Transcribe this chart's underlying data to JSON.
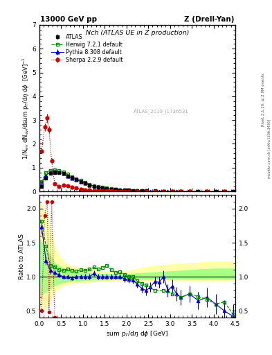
{
  "title_top": "13000 GeV pp",
  "title_right": "Z (Drell-Yan)",
  "panel_title": "Nch (ATLAS UE in Z production)",
  "ylabel_main": "1/N$_{ev}$ dN$_{ev}$/dsum p$_{T}$/d$\\eta$ d$\\phi$  [GeV]$^{-1}$",
  "ylabel_ratio": "Ratio to ATLAS",
  "xlabel": "sum p$_{T}$/d$\\eta$ d$\\phi$ [GeV]",
  "watermark": "ATLAS_2019_I1736531",
  "right_label1": "Rivet 3.1.10, ≥ 2.9M events",
  "right_label2": "mcplots.cern.ch [arXiv:1306.3436]",
  "main_ylim": [
    0,
    7
  ],
  "main_yticks": [
    0,
    1,
    2,
    3,
    4,
    5,
    6,
    7
  ],
  "ratio_ylim": [
    0.4,
    2.2
  ],
  "ratio_yticks": [
    0.5,
    1.0,
    1.5,
    2.0
  ],
  "xlim": [
    0,
    4.5
  ],
  "atlas_x": [
    0.05,
    0.15,
    0.25,
    0.35,
    0.45,
    0.55,
    0.65,
    0.75,
    0.85,
    0.95,
    1.05,
    1.15,
    1.25,
    1.35,
    1.45,
    1.55,
    1.65,
    1.75,
    1.85,
    1.95,
    2.05,
    2.15,
    2.25,
    2.35,
    2.45,
    2.65,
    2.85,
    3.05,
    3.25,
    3.45,
    3.65,
    3.85,
    4.05,
    4.25,
    4.45
  ],
  "atlas_y": [
    0.22,
    0.55,
    0.75,
    0.8,
    0.8,
    0.75,
    0.65,
    0.58,
    0.5,
    0.42,
    0.35,
    0.28,
    0.22,
    0.18,
    0.15,
    0.12,
    0.1,
    0.085,
    0.07,
    0.06,
    0.05,
    0.04,
    0.035,
    0.03,
    0.025,
    0.02,
    0.015,
    0.012,
    0.01,
    0.008,
    0.007,
    0.006,
    0.005,
    0.004,
    0.003
  ],
  "atlas_yerr": [
    0.02,
    0.04,
    0.04,
    0.04,
    0.04,
    0.04,
    0.03,
    0.03,
    0.03,
    0.025,
    0.02,
    0.018,
    0.015,
    0.012,
    0.01,
    0.009,
    0.008,
    0.007,
    0.006,
    0.005,
    0.004,
    0.003,
    0.003,
    0.002,
    0.002,
    0.002,
    0.002,
    0.001,
    0.001,
    0.001,
    0.001,
    0.001,
    0.001,
    0.001,
    0.001
  ],
  "herwig_x": [
    0.05,
    0.15,
    0.25,
    0.35,
    0.45,
    0.55,
    0.65,
    0.75,
    0.85,
    0.95,
    1.05,
    1.15,
    1.25,
    1.35,
    1.45,
    1.55,
    1.65,
    1.75,
    1.85,
    1.95,
    2.05,
    2.15,
    2.25,
    2.35,
    2.45,
    2.65,
    2.85,
    3.05,
    3.25,
    3.45,
    3.65,
    3.85,
    4.05,
    4.25,
    4.45
  ],
  "herwig_y": [
    0.4,
    0.8,
    0.88,
    0.92,
    0.88,
    0.82,
    0.72,
    0.63,
    0.54,
    0.46,
    0.38,
    0.31,
    0.25,
    0.2,
    0.17,
    0.14,
    0.11,
    0.09,
    0.075,
    0.062,
    0.05,
    0.04,
    0.033,
    0.027,
    0.022,
    0.016,
    0.012,
    0.009,
    0.007,
    0.006,
    0.005,
    0.004,
    0.003,
    0.0025,
    0.002
  ],
  "pythia_x": [
    0.05,
    0.15,
    0.25,
    0.35,
    0.45,
    0.55,
    0.65,
    0.75,
    0.85,
    0.95,
    1.05,
    1.15,
    1.25,
    1.35,
    1.45,
    1.55,
    1.65,
    1.75,
    1.85,
    1.95,
    2.05,
    2.15,
    2.25,
    2.35,
    2.45,
    2.55,
    2.65,
    2.75,
    2.85,
    2.95,
    3.05,
    3.15,
    3.25,
    3.45,
    3.65,
    3.85,
    4.05,
    4.25,
    4.45
  ],
  "pythia_y": [
    0.38,
    0.68,
    0.82,
    0.85,
    0.82,
    0.75,
    0.65,
    0.57,
    0.5,
    0.42,
    0.35,
    0.28,
    0.23,
    0.18,
    0.15,
    0.12,
    0.1,
    0.085,
    0.07,
    0.058,
    0.048,
    0.038,
    0.031,
    0.025,
    0.02,
    0.017,
    0.014,
    0.011,
    0.009,
    0.008,
    0.007,
    0.006,
    0.005,
    0.004,
    0.003,
    0.0025,
    0.002,
    0.0016,
    0.0013
  ],
  "pythia_yerr": [
    0.02,
    0.03,
    0.03,
    0.03,
    0.03,
    0.025,
    0.02,
    0.02,
    0.018,
    0.015,
    0.012,
    0.01,
    0.008,
    0.007,
    0.006,
    0.005,
    0.004,
    0.004,
    0.003,
    0.003,
    0.002,
    0.002,
    0.002,
    0.002,
    0.002,
    0.002,
    0.002,
    0.002,
    0.001,
    0.001,
    0.001,
    0.001,
    0.001,
    0.001,
    0.001,
    0.001,
    0.001,
    0.001,
    0.001
  ],
  "sherpa_x": [
    0.05,
    0.12,
    0.18,
    0.22,
    0.28,
    0.35,
    0.45,
    0.55,
    0.65,
    0.75,
    0.85,
    0.95,
    1.05,
    1.15,
    1.25,
    1.35,
    1.45,
    1.55,
    1.65,
    1.75,
    1.85,
    1.95,
    2.05,
    2.25,
    2.45,
    2.65,
    2.85,
    3.05,
    3.25,
    3.45,
    3.85,
    4.25
  ],
  "sherpa_y": [
    1.7,
    2.7,
    3.08,
    2.6,
    1.3,
    0.32,
    0.22,
    0.28,
    0.23,
    0.18,
    0.14,
    0.08,
    0.06,
    0.055,
    0.048,
    0.038,
    0.03,
    0.025,
    0.02,
    0.016,
    0.013,
    0.01,
    0.008,
    0.006,
    0.004,
    0.003,
    0.002,
    0.002,
    0.001,
    0.001,
    0.001,
    0.001
  ],
  "sherpa_yerr": [
    0.1,
    0.15,
    0.18,
    0.15,
    0.1,
    0.04,
    0.02,
    0.02,
    0.015,
    0.012,
    0.01,
    0.008,
    0.006,
    0.005,
    0.004,
    0.003,
    0.003,
    0.002,
    0.002,
    0.002,
    0.001,
    0.001,
    0.001,
    0.001,
    0.001,
    0.001,
    0.001,
    0.001,
    0.001,
    0.001,
    0.001,
    0.001
  ],
  "herwig_ratio_x": [
    0.05,
    0.15,
    0.25,
    0.35,
    0.45,
    0.55,
    0.65,
    0.75,
    0.85,
    0.95,
    1.05,
    1.15,
    1.25,
    1.35,
    1.45,
    1.55,
    1.65,
    1.75,
    1.85,
    1.95,
    2.05,
    2.15,
    2.25,
    2.35,
    2.45,
    2.65,
    2.85,
    3.05,
    3.25,
    3.45,
    3.65,
    3.85,
    4.05,
    4.25,
    4.45
  ],
  "herwig_ratio": [
    1.82,
    1.45,
    1.17,
    1.15,
    1.1,
    1.09,
    1.11,
    1.09,
    1.08,
    1.1,
    1.09,
    1.11,
    1.14,
    1.11,
    1.13,
    1.17,
    1.1,
    1.06,
    1.07,
    1.03,
    1.0,
    1.0,
    0.94,
    0.9,
    0.88,
    0.8,
    0.8,
    0.75,
    0.7,
    0.75,
    0.71,
    0.67,
    0.6,
    0.63,
    0.45
  ],
  "pythia_ratio_x": [
    0.05,
    0.15,
    0.25,
    0.35,
    0.45,
    0.55,
    0.65,
    0.75,
    0.85,
    0.95,
    1.05,
    1.15,
    1.25,
    1.35,
    1.45,
    1.55,
    1.65,
    1.75,
    1.85,
    1.95,
    2.05,
    2.15,
    2.25,
    2.35,
    2.45,
    2.55,
    2.65,
    2.75,
    2.85,
    2.95,
    3.05,
    3.15,
    3.25,
    3.45,
    3.65,
    3.85,
    4.05,
    4.25,
    4.45
  ],
  "pythia_ratio": [
    1.73,
    1.24,
    1.09,
    1.06,
    1.03,
    1.0,
    1.0,
    0.98,
    1.0,
    1.0,
    1.0,
    1.0,
    1.05,
    1.0,
    1.0,
    1.0,
    1.0,
    1.0,
    1.0,
    0.97,
    0.96,
    0.95,
    0.89,
    0.83,
    0.8,
    0.85,
    0.93,
    0.92,
    1.0,
    0.8,
    0.86,
    0.75,
    0.7,
    0.75,
    0.65,
    0.7,
    0.6,
    0.5,
    0.42
  ],
  "pythia_ratio_err": [
    0.1,
    0.06,
    0.05,
    0.04,
    0.04,
    0.03,
    0.03,
    0.03,
    0.03,
    0.03,
    0.04,
    0.04,
    0.04,
    0.04,
    0.04,
    0.04,
    0.04,
    0.04,
    0.04,
    0.05,
    0.05,
    0.05,
    0.05,
    0.06,
    0.07,
    0.07,
    0.07,
    0.08,
    0.09,
    0.09,
    0.1,
    0.1,
    0.11,
    0.12,
    0.13,
    0.14,
    0.15,
    0.16,
    0.18
  ],
  "sherpa_ratio_x": [
    0.05,
    0.12,
    0.18,
    0.22,
    0.28,
    0.35,
    0.45,
    0.55,
    0.65,
    0.75,
    0.85,
    0.95,
    1.05,
    1.15,
    1.25,
    1.35,
    1.45,
    1.55,
    1.65,
    1.75,
    1.85,
    1.95,
    2.05,
    2.25,
    2.45,
    2.65,
    2.85,
    3.05,
    3.25,
    3.45,
    3.85,
    4.25
  ],
  "sherpa_ratio": [
    0.5,
    1.9,
    2.1,
    0.48,
    2.1,
    0.4,
    0.28,
    0.37,
    0.35,
    0.31,
    0.28,
    0.19,
    0.17,
    0.2,
    0.22,
    0.21,
    0.2,
    0.21,
    0.2,
    0.19,
    0.19,
    0.17,
    0.16,
    0.2,
    0.16,
    0.15,
    0.13,
    0.17,
    0.1,
    0.13,
    0.17,
    0.25
  ],
  "yellow_band_x": [
    0.0,
    0.15,
    0.35,
    0.55,
    0.75,
    1.0,
    1.25,
    1.5,
    1.75,
    2.0,
    2.5,
    3.0,
    3.5,
    4.0,
    4.5
  ],
  "yellow_band_low": [
    0.5,
    0.55,
    0.78,
    0.88,
    0.9,
    0.92,
    0.93,
    0.94,
    0.95,
    0.95,
    0.95,
    0.95,
    0.95,
    0.95,
    0.95
  ],
  "yellow_band_high": [
    2.1,
    1.95,
    1.42,
    1.22,
    1.15,
    1.12,
    1.1,
    1.08,
    1.08,
    1.08,
    1.15,
    1.18,
    1.2,
    1.22,
    1.22
  ],
  "green_band_low": [
    0.72,
    0.78,
    0.88,
    0.92,
    0.94,
    0.95,
    0.96,
    0.96,
    0.97,
    0.97,
    0.97,
    0.97,
    0.97,
    0.97,
    0.97
  ],
  "green_band_high": [
    1.55,
    1.42,
    1.2,
    1.12,
    1.08,
    1.06,
    1.05,
    1.04,
    1.04,
    1.04,
    1.06,
    1.08,
    1.1,
    1.12,
    1.12
  ],
  "atlas_color": "#000000",
  "herwig_color": "#008800",
  "pythia_color": "#0000cc",
  "sherpa_color": "#cc0000",
  "yellow_color": "#ffffaa",
  "green_color": "#aaff88"
}
